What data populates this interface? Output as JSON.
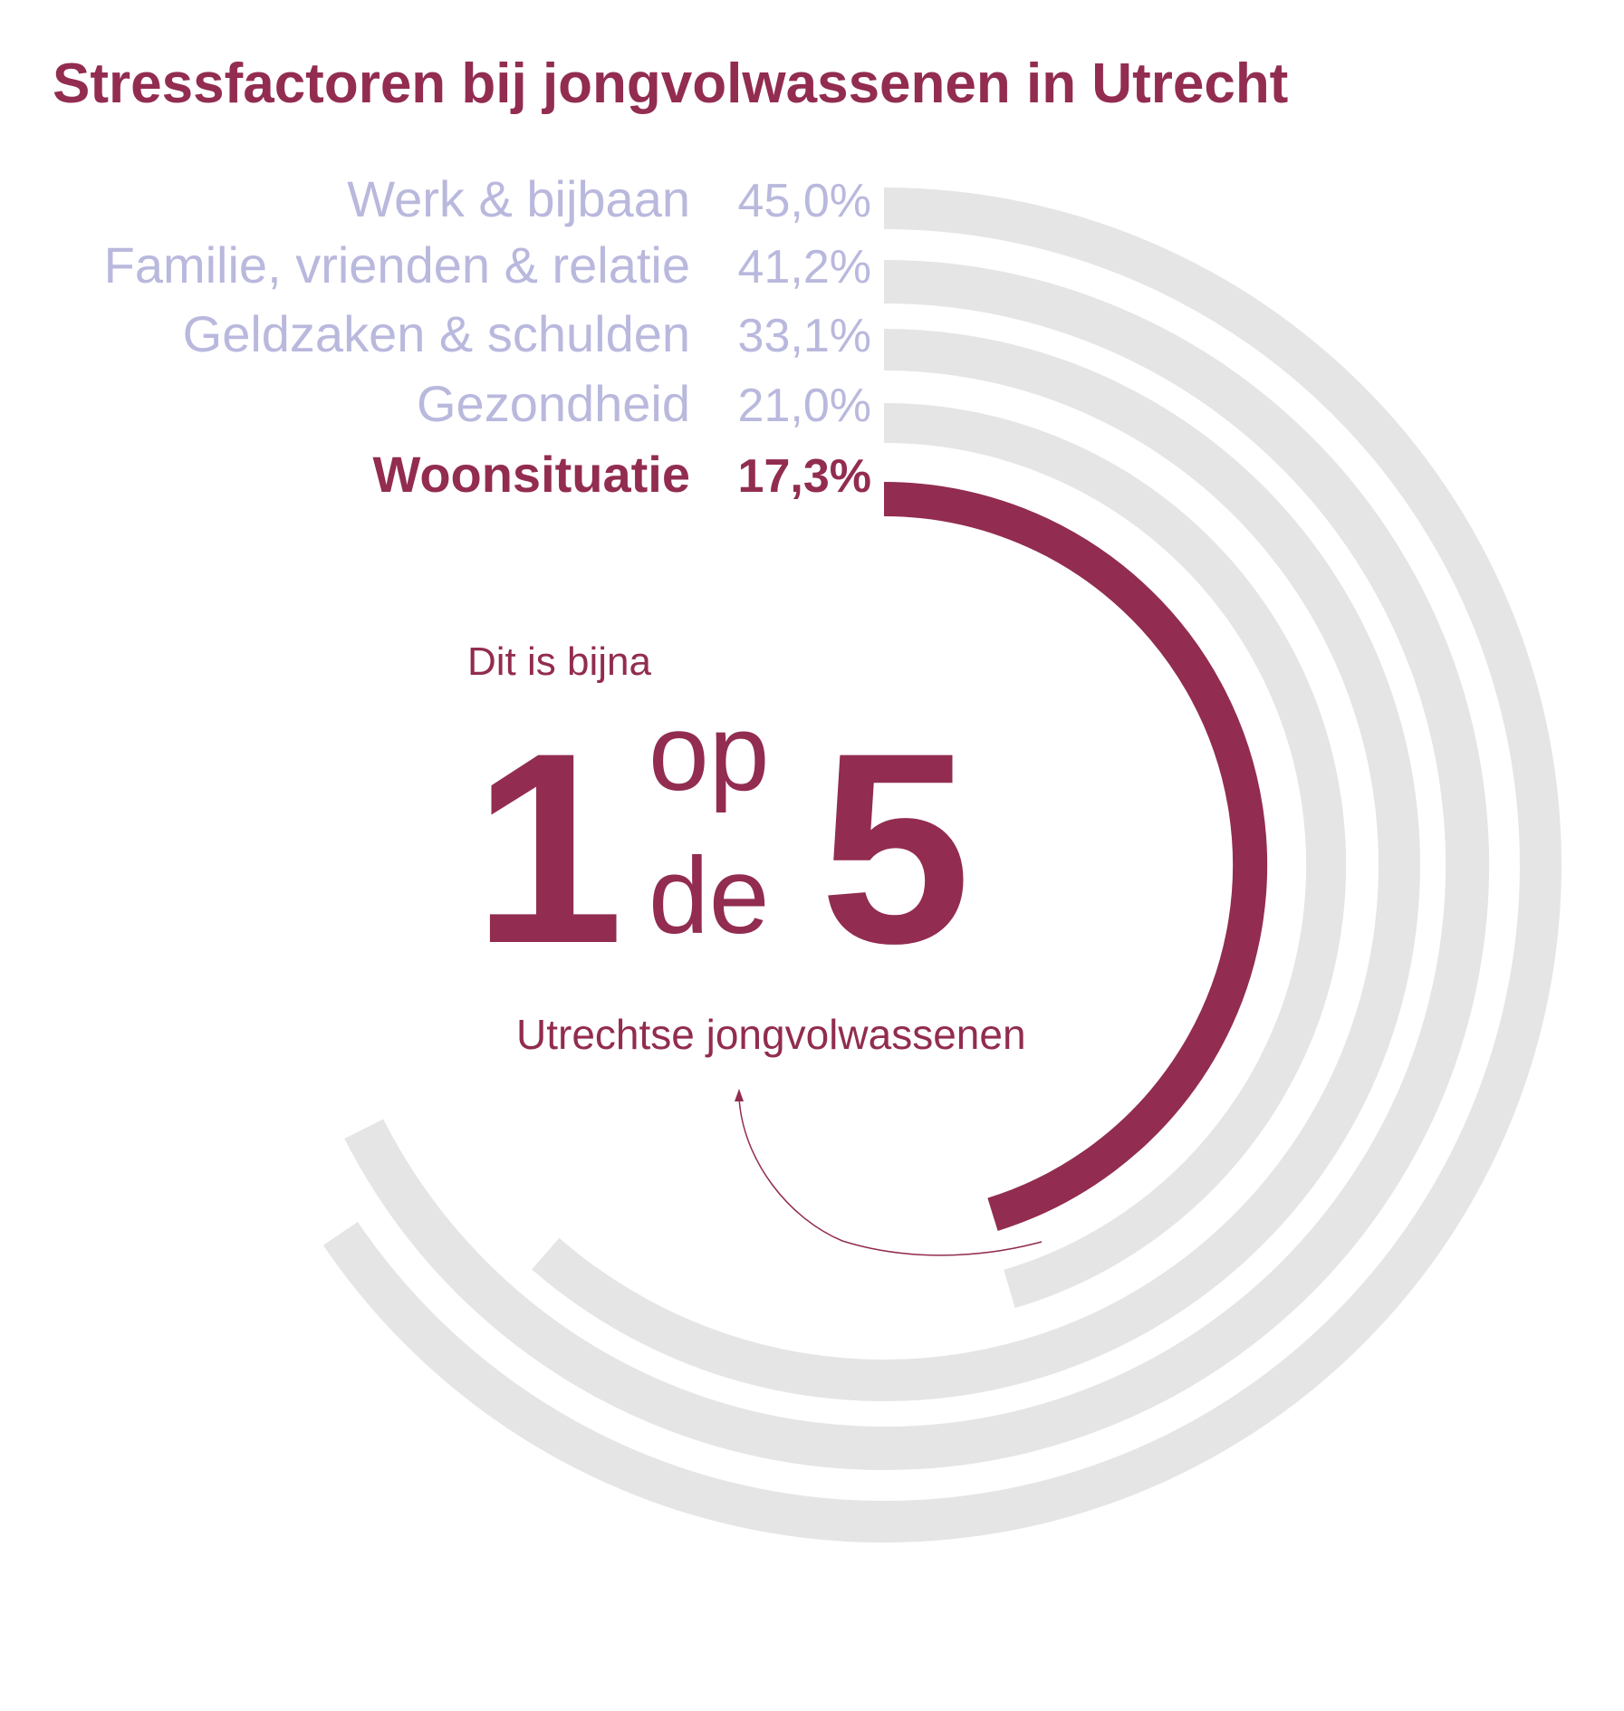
{
  "chart_data": {
    "type": "radial-bar",
    "title": "Stressfactoren bij jongvolwassenen in Utrecht",
    "categories": [
      "Werk & bijbaan",
      "Familie, vrienden & relatie",
      "Geldzaken & schulden",
      "Gezondheid",
      "Woonsituatie"
    ],
    "values": [
      45.0,
      41.2,
      33.1,
      21.0,
      17.3
    ],
    "value_labels": [
      "45,0%",
      "41,2%",
      "33,1%",
      "21,0%",
      "17,3%"
    ],
    "highlight_index": 4,
    "unit": "%"
  },
  "callout": {
    "intro": "Dit is bijna",
    "big_one": "1",
    "op": "op",
    "de": "de",
    "big_five": "5",
    "subject": "Utrechtse jongvolwassenen"
  },
  "colors": {
    "highlight": "#922c50",
    "label": "#b9b8dd",
    "track": "#e5e5e5"
  }
}
